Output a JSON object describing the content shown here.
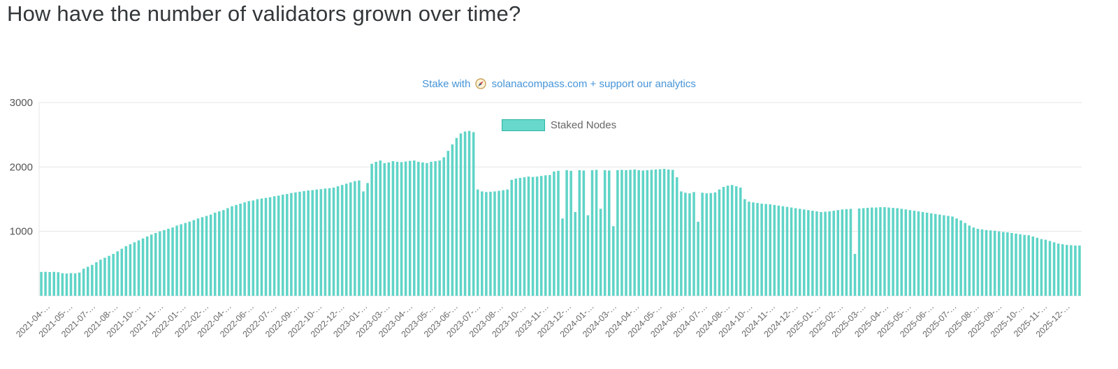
{
  "page": {
    "title": "How have the number of validators grown over time?"
  },
  "promo": {
    "prefix": "Stake with",
    "link_text": "solanacompass.com + support our analytics",
    "icon": "compass-icon",
    "link_color": "#4594d9"
  },
  "legend": {
    "label": "Staked Nodes",
    "swatch_fill": "#67d8cb",
    "swatch_border": "#2ab3a4"
  },
  "chart_data": {
    "type": "bar",
    "title": "",
    "xlabel": "",
    "ylabel": "",
    "ylim": [
      0,
      3000
    ],
    "y_ticks": [
      1000,
      2000,
      3000
    ],
    "grid": true,
    "legend_position": "top",
    "bar_color": "#5fd4c7",
    "axis_color": "#e6e6e6",
    "tick_label_color": "#666666",
    "x_tick_labels": [
      "2021-04-…",
      "2021-05-…",
      "2021-07-…",
      "2021-08-…",
      "2021-10-…",
      "2021-11-…",
      "2022-01-…",
      "2022-02-…",
      "2022-04-…",
      "2022-06-…",
      "2022-07-…",
      "2022-09-…",
      "2022-10-…",
      "2022-12-…",
      "2023-01-…",
      "2023-03-…",
      "2023-04-…",
      "2023-05-…",
      "2023-06-…",
      "2023-07-…",
      "2023-08-…",
      "2023-10-…",
      "2023-11-…",
      "2023-12-…",
      "2024-01-…",
      "2024-03-…",
      "2024-04-…",
      "2024-05-…",
      "2024-06-…",
      "2024-07-…",
      "2024-08-…",
      "2024-10-…",
      "2024-11-…",
      "2024-12-…",
      "2025-01-…",
      "2025-02-…",
      "2025-03-…",
      "2025-04-…",
      "2025-05-…",
      "2025-06-…",
      "2025-07-…",
      "2025-08-…",
      "2025-09-…",
      "2025-10-…",
      "2025-11-…",
      "2025-12-…"
    ],
    "series": [
      {
        "name": "Staked Nodes",
        "values": [
          370,
          372,
          368,
          371,
          365,
          350,
          345,
          352,
          348,
          360,
          420,
          450,
          480,
          520,
          560,
          590,
          620,
          650,
          690,
          730,
          770,
          800,
          830,
          860,
          890,
          920,
          950,
          975,
          1000,
          1020,
          1040,
          1060,
          1090,
          1110,
          1130,
          1150,
          1175,
          1200,
          1220,
          1240,
          1260,
          1290,
          1310,
          1330,
          1360,
          1390,
          1410,
          1430,
          1450,
          1470,
          1480,
          1500,
          1510,
          1520,
          1530,
          1545,
          1555,
          1570,
          1580,
          1595,
          1605,
          1615,
          1625,
          1635,
          1640,
          1650,
          1655,
          1665,
          1670,
          1680,
          1700,
          1720,
          1740,
          1760,
          1780,
          1790,
          1620,
          1750,
          2050,
          2080,
          2100,
          2060,
          2070,
          2090,
          2080,
          2075,
          2085,
          2095,
          2100,
          2080,
          2070,
          2060,
          2080,
          2090,
          2100,
          2150,
          2250,
          2350,
          2450,
          2520,
          2550,
          2560,
          2540,
          1650,
          1620,
          1610,
          1615,
          1620,
          1630,
          1640,
          1650,
          1800,
          1820,
          1830,
          1840,
          1850,
          1845,
          1850,
          1860,
          1870,
          1875,
          1930,
          1940,
          1200,
          1950,
          1940,
          1300,
          1950,
          1945,
          1250,
          1950,
          1955,
          1350,
          1950,
          1945,
          1080,
          1950,
          1955,
          1950,
          1955,
          1960,
          1950,
          1945,
          1950,
          1955,
          1960,
          1965,
          1970,
          1960,
          1955,
          1840,
          1620,
          1600,
          1590,
          1610,
          1150,
          1600,
          1590,
          1595,
          1605,
          1650,
          1690,
          1710,
          1720,
          1700,
          1680,
          1500,
          1460,
          1450,
          1440,
          1430,
          1425,
          1420,
          1410,
          1400,
          1390,
          1380,
          1370,
          1360,
          1350,
          1340,
          1330,
          1320,
          1310,
          1300,
          1305,
          1310,
          1320,
          1330,
          1340,
          1345,
          1350,
          650,
          1355,
          1360,
          1365,
          1370,
          1370,
          1375,
          1375,
          1370,
          1365,
          1360,
          1350,
          1340,
          1330,
          1320,
          1310,
          1300,
          1290,
          1280,
          1270,
          1260,
          1250,
          1240,
          1230,
          1200,
          1170,
          1130,
          1090,
          1060,
          1040,
          1030,
          1020,
          1015,
          1010,
          1000,
          990,
          985,
          975,
          965,
          955,
          945,
          940,
          920,
          900,
          880,
          870,
          850,
          830,
          810,
          800,
          790,
          785,
          780,
          780
        ]
      }
    ]
  }
}
